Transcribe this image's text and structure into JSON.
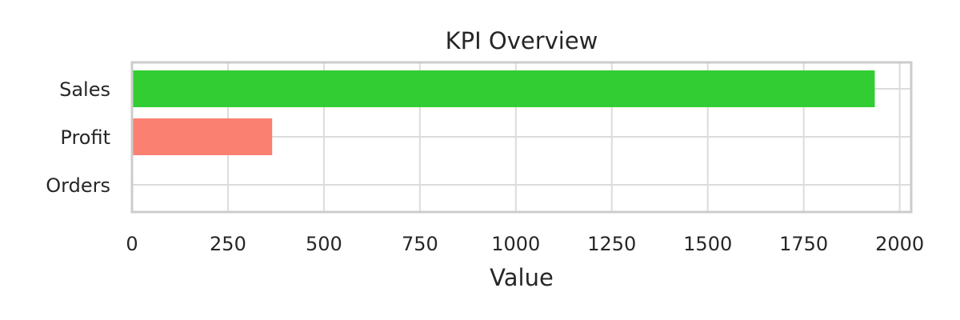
{
  "chart_data": {
    "type": "bar",
    "orientation": "horizontal",
    "title": "KPI Overview",
    "xlabel": "Value",
    "ylabel": "",
    "categories": [
      "Sales",
      "Profit",
      "Orders"
    ],
    "values": [
      1932,
      362,
      0
    ],
    "xlim": [
      0,
      2030
    ],
    "xticks": [
      0,
      250,
      500,
      750,
      1000,
      1250,
      1500,
      1750,
      2000
    ],
    "colors": [
      "#32cd32",
      "#fa8072",
      "#4169e1"
    ],
    "grid": true,
    "legend": "none"
  }
}
